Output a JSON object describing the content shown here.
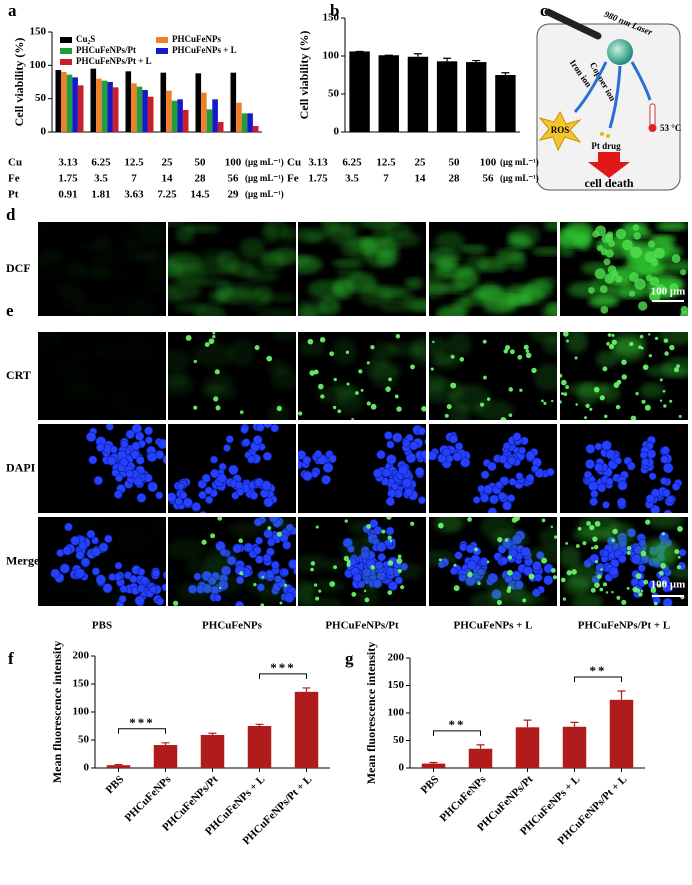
{
  "chart_data": [
    {
      "type": "bar",
      "panel_label": "a",
      "ylabel": "Cell viability (%)",
      "ylim": [
        0,
        150
      ],
      "yticks": [
        0,
        50,
        100,
        150
      ],
      "category_rows": [
        {
          "label": "Cu",
          "categories": [
            "3.13",
            "6.25",
            "12.5",
            "25",
            "50",
            "100"
          ],
          "unit": "(μg mL⁻¹)"
        },
        {
          "label": "Fe",
          "categories": [
            "1.75",
            "3.5",
            "7",
            "14",
            "28",
            "56"
          ],
          "unit": "(μg mL⁻¹)"
        },
        {
          "label": "Pt",
          "categories": [
            "0.91",
            "1.81",
            "3.63",
            "7.25",
            "14.5",
            "29"
          ],
          "unit": "(μg mL⁻¹)"
        }
      ],
      "series": [
        {
          "name": "Cu₂S",
          "color": "#000000",
          "values": [
            93,
            95,
            91,
            89,
            88,
            89
          ]
        },
        {
          "name": "PHCuFeNPs",
          "color": "#f07f2c",
          "values": [
            90,
            80,
            73,
            62,
            59,
            44
          ]
        },
        {
          "name": "PHCuFeNPs/Pt",
          "color": "#1f9e3a",
          "values": [
            86,
            77,
            68,
            47,
            34,
            28
          ]
        },
        {
          "name": "PHCuFeNPs + L",
          "color": "#1818c8",
          "values": [
            82,
            75,
            63,
            49,
            49,
            28
          ]
        },
        {
          "name": "PHCuFeNPs/Pt + L",
          "color": "#c81f2a",
          "values": [
            70,
            67,
            53,
            33,
            15,
            9
          ]
        }
      ],
      "legend": "top"
    },
    {
      "type": "bar",
      "panel_label": "b",
      "ylabel": "Cell viability (%)",
      "ylim": [
        0,
        150
      ],
      "yticks": [
        0,
        50,
        100,
        150
      ],
      "category_rows": [
        {
          "label": "Cu",
          "categories": [
            "3.13",
            "6.25",
            "12.5",
            "25",
            "50",
            "100"
          ],
          "unit": "(μg mL⁻¹)"
        },
        {
          "label": "Fe",
          "categories": [
            "1.75",
            "3.5",
            "7",
            "14",
            "28",
            "56"
          ],
          "unit": "(μg mL⁻¹)"
        }
      ],
      "values": [
        106,
        101,
        99,
        93,
        92,
        75
      ],
      "errors": [
        0,
        0,
        4,
        4,
        2,
        3
      ],
      "color": "#000000"
    },
    {
      "type": "bar",
      "panel_label": "f",
      "ylabel": "Mean fluorescence intensity",
      "ylim": [
        0,
        200
      ],
      "yticks": [
        0,
        50,
        100,
        150,
        200
      ],
      "categories": [
        "PBS",
        "PHCuFeNPs",
        "PHCuFeNPs/Pt",
        "PHCuFeNPs + L",
        "PHCuFeNPs/Pt + L"
      ],
      "values": [
        5,
        41,
        59,
        75,
        136
      ],
      "errors": [
        1,
        4,
        3,
        3,
        7
      ],
      "color": "#b01c1c",
      "annotations": [
        {
          "text": "***",
          "between": [
            0,
            1
          ]
        },
        {
          "text": "***",
          "between": [
            3,
            4
          ]
        }
      ]
    },
    {
      "type": "bar",
      "panel_label": "g",
      "ylabel": "Mean fluorescence intensity",
      "ylim": [
        0,
        200
      ],
      "yticks": [
        0,
        50,
        100,
        150,
        200
      ],
      "categories": [
        "PBS",
        "PHCuFeNPs",
        "PHCuFeNPs/Pt",
        "PHCuFeNPs + L",
        "PHCuFeNPs/Pt + L"
      ],
      "values": [
        8,
        35,
        74,
        75,
        124
      ],
      "errors": [
        2,
        7,
        13,
        8,
        16
      ],
      "color": "#b01c1c",
      "annotations": [
        {
          "text": "**",
          "between": [
            0,
            1
          ]
        },
        {
          "text": "**",
          "between": [
            3,
            4
          ]
        }
      ]
    }
  ],
  "diagram": {
    "panel_label": "c",
    "laser": "980 nm Laser",
    "iron": "Iron ion",
    "copper": "Copper ion",
    "ros": "ROS",
    "drug": "Pt drug",
    "temperature": "53 °C",
    "outcome": "cell death"
  },
  "micrographs": {
    "panel_labels": [
      "d",
      "e"
    ],
    "row_labels": [
      "DCF",
      "CRT",
      "DAPI",
      "Merge"
    ],
    "column_labels": [
      "PBS",
      "PHCuFeNPs",
      "PHCuFeNPs/Pt",
      "PHCuFeNPs + L",
      "PHCuFeNPs/Pt + L"
    ],
    "scale_bar": "100 μm"
  }
}
